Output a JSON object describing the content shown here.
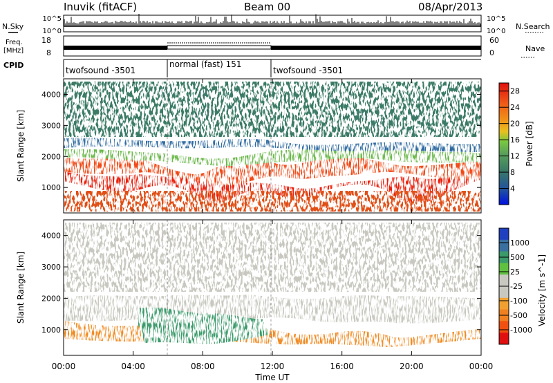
{
  "header": {
    "title": "Inuvik (fitACF)",
    "beam": "Beam 00",
    "date": "08/Apr/2013"
  },
  "status_panels": {
    "nsky_label": "N.Sky",
    "nsearch_label": "N.Search",
    "freq_label_line1": "Freq.",
    "freq_label_line2": "[MHz]",
    "nave_label": "Nave",
    "cpid_label": "CPID",
    "noise_ticks": [
      "10^5",
      "10^0"
    ],
    "freq_ticks": [
      "18",
      "8"
    ],
    "nave_ticks": [
      "60",
      "0"
    ]
  },
  "cpid_segments": [
    {
      "label": "twofsound -3501",
      "start_hour": 0,
      "end_hour": 6
    },
    {
      "label": "normal (fast) 151",
      "start_hour": 6,
      "end_hour": 12
    },
    {
      "label": "twofsound -3501",
      "start_hour": 12,
      "end_hour": 24
    }
  ],
  "chart_data": [
    {
      "type": "heatmap",
      "title": "",
      "xlabel": "Time UT",
      "ylabel": "Slant Range [km]",
      "xlim": [
        0,
        24
      ],
      "ylim": [
        180,
        4500
      ],
      "x_ticks": [
        "00:00",
        "04:00",
        "08:00",
        "12:00",
        "16:00",
        "20:00",
        "00:00"
      ],
      "y_ticks": [
        1000,
        2000,
        3000,
        4000
      ],
      "colorbar": {
        "label": "Power [dB]",
        "ticks": [
          4,
          8,
          12,
          16,
          20,
          24,
          28
        ],
        "range": [
          0,
          30
        ],
        "colors": [
          "#0010e0",
          "#2050a0",
          "#3a7a66",
          "#5aa05a",
          "#7ac840",
          "#e8c020",
          "#f09018",
          "#f06018",
          "#e83018",
          "#e01010"
        ]
      },
      "bands": [
        {
          "range_km": [
            600,
            1000
          ],
          "power_db": 27
        },
        {
          "range_km": [
            1000,
            1600
          ],
          "power_db": 24
        },
        {
          "range_km": [
            1600,
            2100
          ],
          "power_db": 14
        },
        {
          "range_km": [
            2600,
            3300
          ],
          "power_db": 8
        }
      ]
    },
    {
      "type": "heatmap",
      "title": "",
      "xlabel": "Time UT",
      "ylabel": "Slant Range [km]",
      "xlim": [
        0,
        24
      ],
      "ylim": [
        180,
        4500
      ],
      "x_ticks": [
        "00:00",
        "04:00",
        "08:00",
        "12:00",
        "16:00",
        "20:00",
        "00:00"
      ],
      "y_ticks": [
        1000,
        2000,
        3000,
        4000
      ],
      "colorbar": {
        "label": "Velocity [m s^-1]",
        "ticks": [
          1000,
          500,
          25,
          -25,
          -100,
          -500,
          -1000
        ],
        "colors": [
          "#2040c0",
          "#3a70a0",
          "#3a9a6a",
          "#60c040",
          "#c8c8c0",
          "#c8c8c0",
          "#f0a030",
          "#f08020",
          "#f05010",
          "#e01010"
        ]
      },
      "bands": [
        {
          "range_km": [
            600,
            1100
          ],
          "velocity_ms": -200
        },
        {
          "range_km": [
            1300,
            2300
          ],
          "velocity_ms": 0
        }
      ]
    }
  ]
}
